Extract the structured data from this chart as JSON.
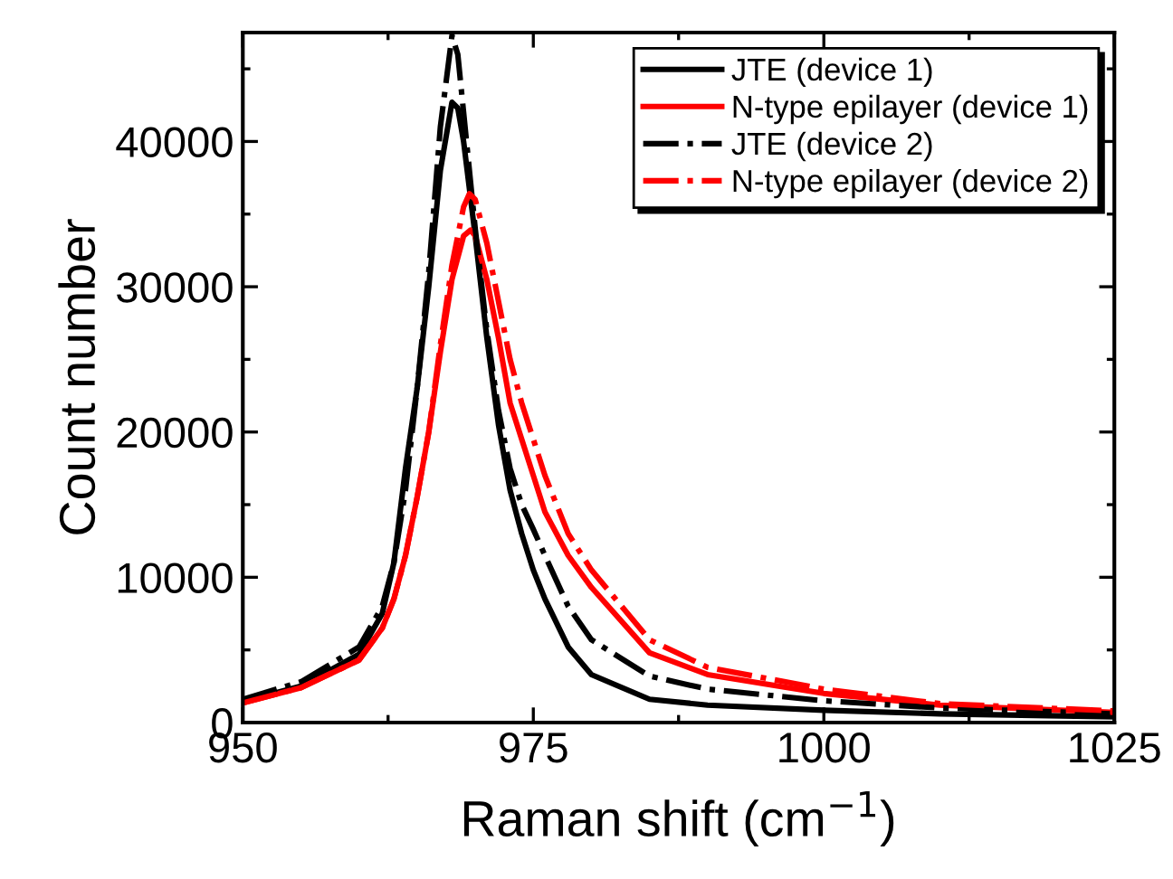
{
  "chart_data": {
    "type": "line",
    "xlabel": "Raman shift (cm$^{−1}$)",
    "ylabel": "Count number",
    "xlim": [
      950,
      1025
    ],
    "xticks": [
      950,
      975,
      1000,
      1025
    ],
    "ylim": [
      0,
      47500
    ],
    "yticks": [
      0,
      10000,
      20000,
      30000,
      40000
    ],
    "grid": false,
    "legend": "top right",
    "marker": "none",
    "series": [
      {
        "name": "JTE (device 1)",
        "color": "#000000",
        "line_style": "solid",
        "x": [
          950,
          955,
          960,
          962,
          963,
          964,
          965,
          966,
          967,
          968,
          968.5,
          969,
          970,
          971,
          972,
          973,
          974,
          975,
          976,
          978,
          980,
          985,
          990,
          1000,
          1010,
          1025
        ],
        "values": [
          1450,
          2500,
          4700,
          7500,
          11000,
          17500,
          23000,
          30000,
          38000,
          42700,
          42300,
          40000,
          33500,
          26500,
          20500,
          16000,
          13000,
          10500,
          8500,
          5200,
          3300,
          1600,
          1200,
          850,
          600,
          400
        ]
      },
      {
        "name": "N-type epilayer (device 1)",
        "color": "#ff0000",
        "line_style": "solid",
        "x": [
          950,
          955,
          960,
          962,
          963,
          964,
          965,
          966,
          967,
          968,
          969,
          969.6,
          970,
          971,
          972,
          973,
          974,
          975,
          976,
          978,
          980,
          985,
          990,
          1000,
          1010,
          1025
        ],
        "values": [
          1350,
          2400,
          4300,
          6500,
          8500,
          11500,
          15500,
          20000,
          25500,
          30500,
          33500,
          33900,
          33500,
          30500,
          26500,
          22000,
          19500,
          17000,
          14500,
          11500,
          9300,
          4800,
          3300,
          2000,
          1200,
          700
        ]
      },
      {
        "name": "JTE (device 2)",
        "color": "#000000",
        "line_style": "dashdot",
        "x": [
          950,
          955,
          960,
          962,
          963,
          964,
          965,
          966,
          967,
          968,
          968.5,
          969,
          970,
          971,
          972,
          973,
          974,
          975,
          976,
          978,
          980,
          985,
          990,
          1000,
          1010,
          1025
        ],
        "values": [
          1600,
          2800,
          5200,
          8000,
          11000,
          16000,
          23000,
          31000,
          41000,
          47300,
          46000,
          42000,
          34000,
          27000,
          21500,
          17500,
          15000,
          13300,
          11500,
          8000,
          5700,
          3200,
          2300,
          1500,
          1000,
          600
        ]
      },
      {
        "name": "N-type epilayer (device 2)",
        "color": "#ff0000",
        "line_style": "dashdot",
        "x": [
          950,
          955,
          960,
          962,
          963,
          964,
          965,
          966,
          967,
          968,
          969,
          969.5,
          970,
          971,
          972,
          973,
          974,
          975,
          976,
          978,
          980,
          985,
          990,
          1000,
          1010,
          1025
        ],
        "values": [
          1350,
          2400,
          4300,
          6500,
          8500,
          11500,
          15500,
          20000,
          26000,
          31500,
          35500,
          36400,
          36000,
          33000,
          29000,
          25000,
          22000,
          19500,
          17000,
          13000,
          10500,
          5700,
          3800,
          2300,
          1300,
          800
        ]
      }
    ]
  }
}
